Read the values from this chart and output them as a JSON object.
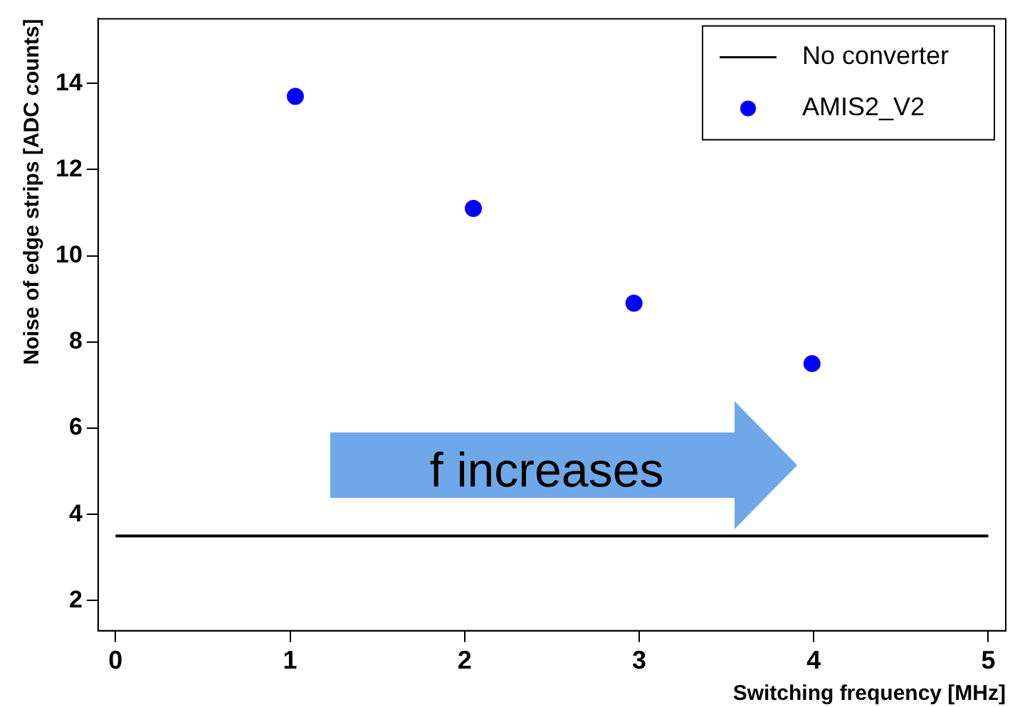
{
  "chart_data": {
    "type": "scatter",
    "xlabel": "Switching frequency [MHz]",
    "ylabel": "Noise of edge strips [ADC counts]",
    "xlim": [
      -0.1,
      5.1
    ],
    "xticks": [
      0,
      1,
      2,
      3,
      4,
      5
    ],
    "ylim": [
      1.3,
      15.5
    ],
    "yticks": [
      2,
      4,
      6,
      8,
      10,
      12,
      14
    ],
    "series": [
      {
        "name": "No converter",
        "type": "line",
        "color": "#000000",
        "x": [
          0,
          5
        ],
        "values": [
          3.5,
          3.5
        ]
      },
      {
        "name": "AMIS2_V2",
        "color": "#0000ff",
        "marker": "circle",
        "x": [
          1.03,
          2.05,
          2.97,
          3.99
        ],
        "values": [
          13.7,
          11.1,
          8.9,
          7.5
        ]
      }
    ],
    "annotations": [
      "f increases"
    ],
    "grid": false,
    "legend": "top right"
  }
}
